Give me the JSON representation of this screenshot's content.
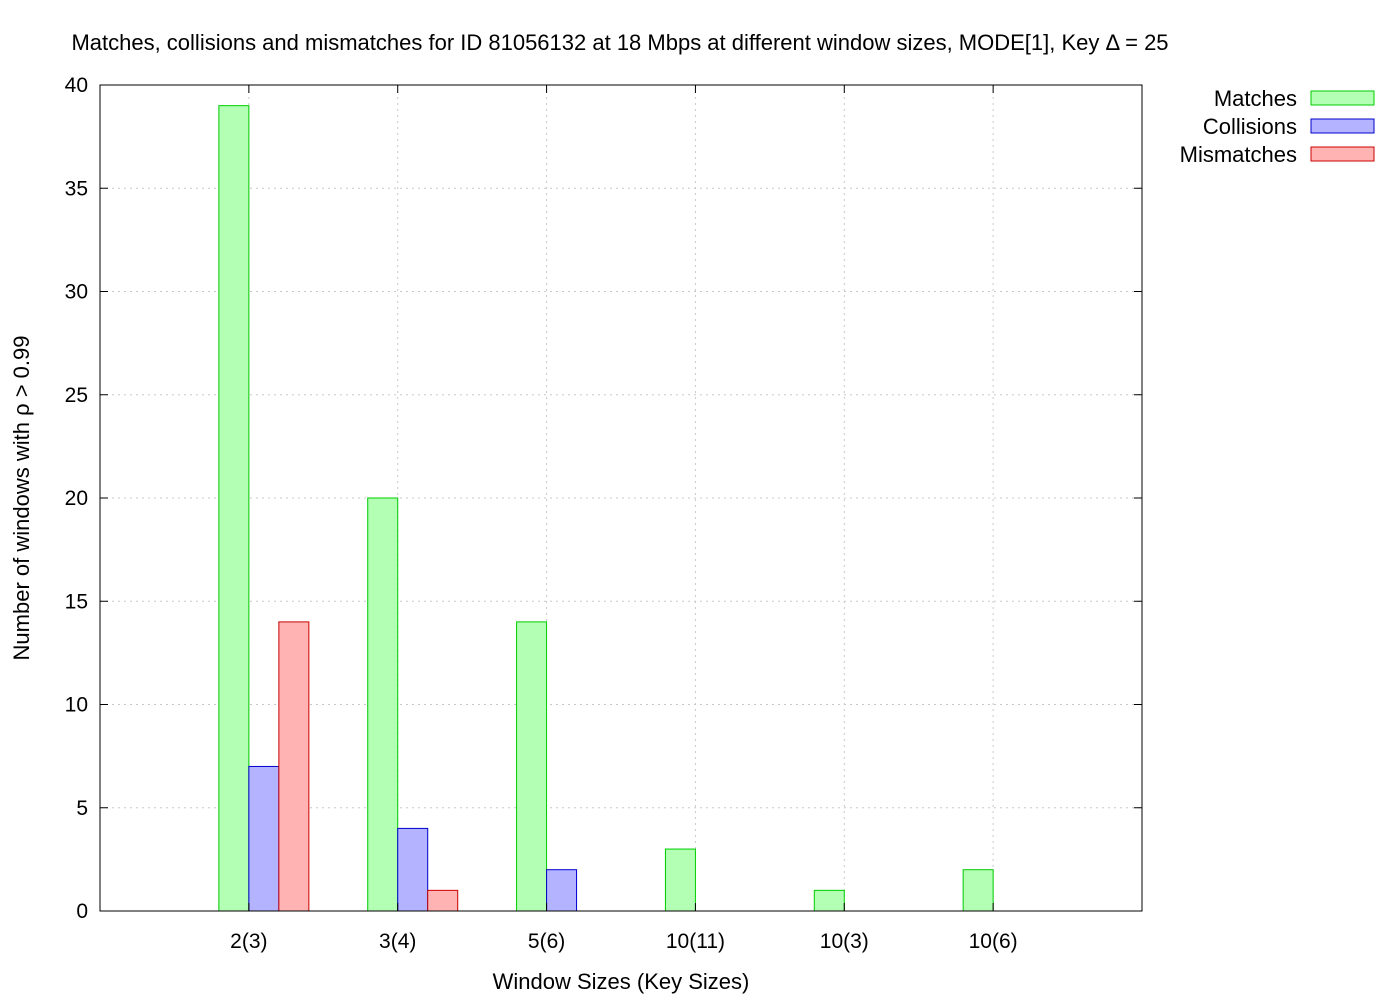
{
  "chart_data": {
    "type": "bar",
    "title": "Matches, collisions and mismatches for ID 81056132 at 18 Mbps at different window sizes, MODE[1], Key Δ = 25",
    "xlabel": "Window Sizes (Key Sizes)",
    "ylabel": "Number of windows with ρ > 0.99",
    "categories": [
      "2(3)",
      "3(4)",
      "5(6)",
      "10(11)",
      "10(3)",
      "10(6)"
    ],
    "series": [
      {
        "name": "Matches",
        "values": [
          39,
          20,
          14,
          3,
          1,
          2
        ],
        "fill": "#b3ffb3",
        "stroke": "#00cc00"
      },
      {
        "name": "Collisions",
        "values": [
          7,
          4,
          2,
          0,
          0,
          0
        ],
        "fill": "#b3b3ff",
        "stroke": "#0000cc"
      },
      {
        "name": "Mismatches",
        "values": [
          14,
          1,
          0,
          0,
          0,
          0
        ],
        "fill": "#ffb3b3",
        "stroke": "#cc0000"
      }
    ],
    "ylim": [
      0,
      40
    ],
    "yticks": [
      0,
      5,
      10,
      15,
      20,
      25,
      30,
      35,
      40
    ],
    "grid": true,
    "legend_position": "outside-top-right"
  }
}
